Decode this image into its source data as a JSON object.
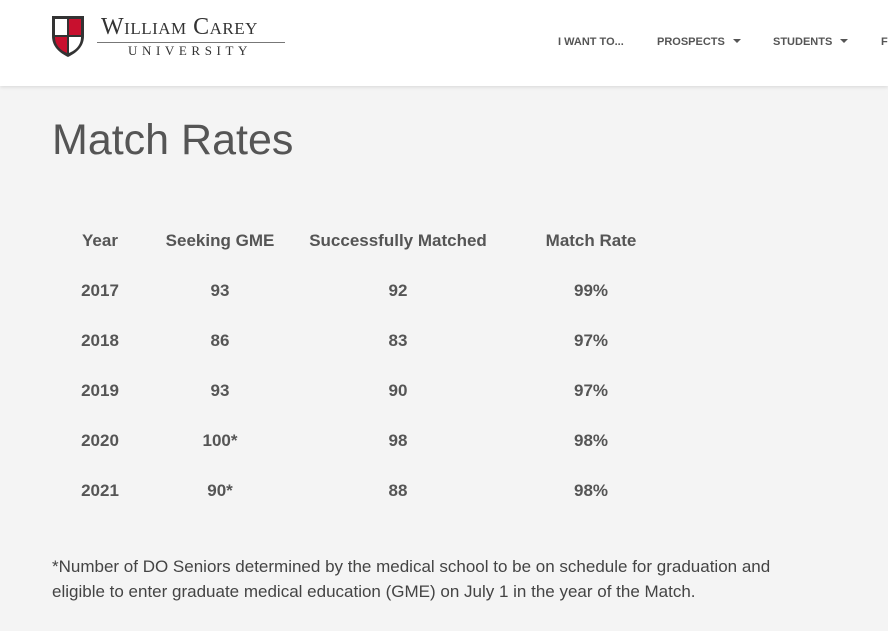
{
  "header": {
    "logo": {
      "name": "William Carey",
      "subtitle": "University"
    },
    "nav": [
      {
        "label": "I WANT TO...",
        "dropdown": false
      },
      {
        "label": "PROSPECTS",
        "dropdown": true
      },
      {
        "label": "STUDENTS",
        "dropdown": true
      },
      {
        "label": "F",
        "dropdown": false
      }
    ]
  },
  "title": "Match Rates",
  "table": {
    "columns": [
      "Year",
      "Seeking GME",
      "Successfully Matched",
      "Match Rate"
    ],
    "rows": [
      [
        "2017",
        "93",
        "92",
        "99%"
      ],
      [
        "2018",
        "86",
        "83",
        "97%"
      ],
      [
        "2019",
        "93",
        "90",
        "97%"
      ],
      [
        "2020",
        "100*",
        "98",
        "98%"
      ],
      [
        "2021",
        "90*",
        "88",
        "98%"
      ]
    ]
  },
  "footnote": "*Number of DO Seniors determined by the medical school to be on schedule for graduation and eligible to enter graduate medical education (GME) on July 1 in the year of the Match."
}
